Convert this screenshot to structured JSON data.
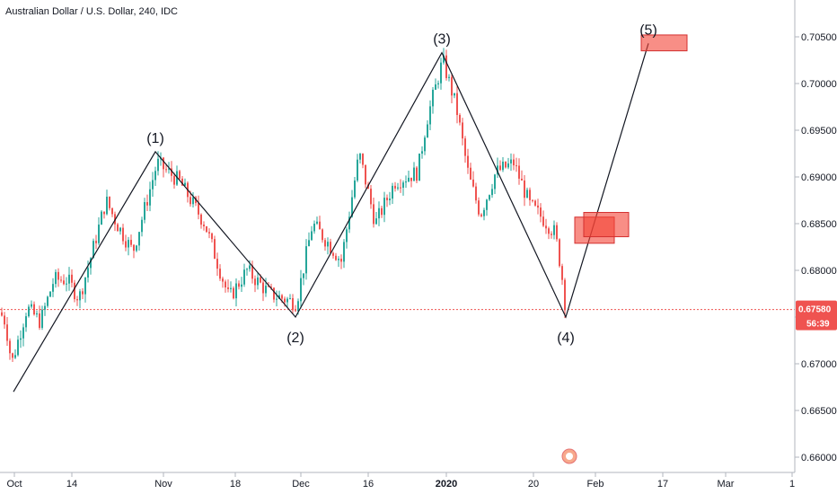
{
  "header": {
    "title": "Australian Dollar / U.S. Dollar, 240, IDC"
  },
  "price_badge": {
    "value": "0.67580",
    "countdown": "56:39"
  },
  "colors": {
    "up": "#26a69a",
    "down": "#ef5350",
    "wave": "#131722",
    "box_fill": "#f44336",
    "price_line": "#ef5350",
    "axis": "#b2b5be"
  },
  "chart_data": {
    "type": "candlestick",
    "title": "Australian Dollar / U.S. Dollar, 240, IDC",
    "symbol": "AUDUSD",
    "x_ticks": [
      "Oct",
      "14",
      "Nov",
      "18",
      "Dec",
      "16",
      "2020",
      "20",
      "Feb",
      "17",
      "Mar",
      "1"
    ],
    "y_ticks": [
      "0.70500",
      "0.70000",
      "0.69500",
      "0.69000",
      "0.68500",
      "0.68000",
      "0.67500",
      "0.67000",
      "0.66500",
      "0.66000"
    ],
    "ylim": [
      0.6597,
      0.7083
    ],
    "last_price": 0.6758,
    "price_path": [
      {
        "t": 0,
        "p": 0.6755
      },
      {
        "t": 6,
        "p": 0.6745
      },
      {
        "t": 13,
        "p": 0.67
      },
      {
        "t": 30,
        "p": 0.676
      },
      {
        "t": 45,
        "p": 0.6745
      },
      {
        "t": 60,
        "p": 0.679
      },
      {
        "t": 75,
        "p": 0.679
      },
      {
        "t": 88,
        "p": 0.677
      },
      {
        "t": 100,
        "p": 0.681
      },
      {
        "t": 118,
        "p": 0.6875
      },
      {
        "t": 130,
        "p": 0.685
      },
      {
        "t": 148,
        "p": 0.682
      },
      {
        "t": 175,
        "p": 0.6915
      },
      {
        "t": 200,
        "p": 0.6895
      },
      {
        "t": 228,
        "p": 0.685
      },
      {
        "t": 255,
        "p": 0.677
      },
      {
        "t": 275,
        "p": 0.68
      },
      {
        "t": 300,
        "p": 0.6775
      },
      {
        "t": 330,
        "p": 0.6765
      },
      {
        "t": 348,
        "p": 0.685
      },
      {
        "t": 365,
        "p": 0.683
      },
      {
        "t": 380,
        "p": 0.681
      },
      {
        "t": 400,
        "p": 0.6925
      },
      {
        "t": 418,
        "p": 0.685
      },
      {
        "t": 440,
        "p": 0.6895
      },
      {
        "t": 465,
        "p": 0.6905
      },
      {
        "t": 475,
        "p": 0.696
      },
      {
        "t": 493,
        "p": 0.7025
      },
      {
        "t": 508,
        "p": 0.6975
      },
      {
        "t": 522,
        "p": 0.69
      },
      {
        "t": 535,
        "p": 0.686
      },
      {
        "t": 552,
        "p": 0.6905
      },
      {
        "t": 572,
        "p": 0.6915
      },
      {
        "t": 590,
        "p": 0.687
      },
      {
        "t": 605,
        "p": 0.6855
      },
      {
        "t": 618,
        "p": 0.684
      },
      {
        "t": 625,
        "p": 0.68
      },
      {
        "t": 630,
        "p": 0.6758
      }
    ],
    "wave_points": [
      {
        "label": "",
        "t": 15,
        "p": 0.667
      },
      {
        "label": "(1)",
        "t": 173,
        "p": 0.6927
      },
      {
        "label": "(2)",
        "t": 329,
        "p": 0.675
      },
      {
        "label": "(3)",
        "t": 492,
        "p": 0.7033
      },
      {
        "label": "(4)",
        "t": 630,
        "p": 0.675
      },
      {
        "label": "(5)",
        "t": 722,
        "p": 0.7043
      }
    ],
    "zones": [
      {
        "t0": 640,
        "t1": 684,
        "p_top": 0.6857,
        "p_bot": 0.6829
      },
      {
        "t0": 650,
        "t1": 700,
        "p_top": 0.6862,
        "p_bot": 0.6836
      },
      {
        "t0": 714,
        "t1": 765,
        "p_top": 0.7052,
        "p_bot": 0.7035
      }
    ]
  }
}
